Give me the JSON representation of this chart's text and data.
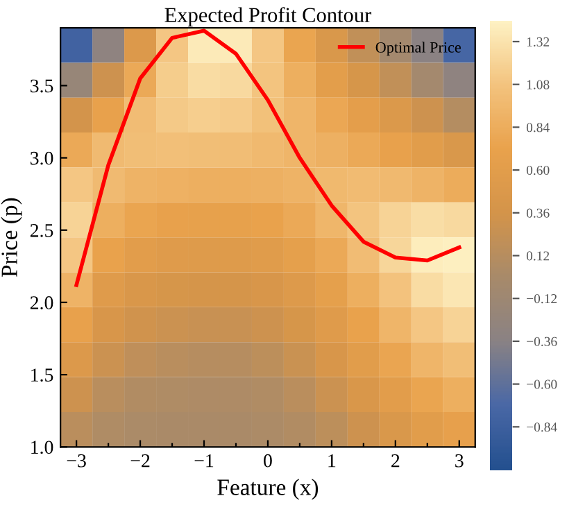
{
  "chart_data": {
    "type": "heatmap",
    "title": "Expected Profit Contour",
    "xlabel": "Feature (x)",
    "ylabel": "Price (p)",
    "categories": [
      "−3",
      null,
      "−2",
      null,
      "−1",
      null,
      "0",
      null,
      "1",
      null,
      "2",
      null,
      "3"
    ],
    "cells": [
      [
        -0.8,
        -0.3,
        0.5,
        1.1,
        1.38,
        1.38,
        1.1,
        0.75,
        0.45,
        0.2,
        -0.05,
        -0.35,
        -0.75
      ],
      [
        -0.2,
        0.3,
        0.8,
        1.15,
        1.27,
        1.25,
        1.08,
        0.85,
        0.62,
        0.4,
        0.2,
        -0.05,
        -0.3
      ],
      [
        0.35,
        0.7,
        1.0,
        1.12,
        1.16,
        1.14,
        1.05,
        0.92,
        0.78,
        0.63,
        0.48,
        0.3,
        0.1
      ],
      [
        0.8,
        0.98,
        1.02,
        1.03,
        1.02,
        1.01,
        0.97,
        0.92,
        0.87,
        0.8,
        0.7,
        0.58,
        0.45
      ],
      [
        1.1,
        0.98,
        0.9,
        0.88,
        0.86,
        0.86,
        0.87,
        0.9,
        0.96,
        0.99,
        0.97,
        0.9,
        0.82
      ],
      [
        1.2,
        0.85,
        0.75,
        0.7,
        0.69,
        0.69,
        0.72,
        0.8,
        0.93,
        1.08,
        1.2,
        1.28,
        1.25
      ],
      [
        1.1,
        0.72,
        0.6,
        0.55,
        0.53,
        0.53,
        0.57,
        0.66,
        0.8,
        1.0,
        1.22,
        1.4,
        1.42
      ],
      [
        0.9,
        0.55,
        0.44,
        0.4,
        0.38,
        0.38,
        0.42,
        0.52,
        0.66,
        0.85,
        1.07,
        1.27,
        1.35
      ],
      [
        0.7,
        0.42,
        0.32,
        0.28,
        0.26,
        0.26,
        0.3,
        0.4,
        0.55,
        0.72,
        0.92,
        1.1,
        1.2
      ],
      [
        0.5,
        0.28,
        0.18,
        0.14,
        0.12,
        0.12,
        0.17,
        0.27,
        0.42,
        0.58,
        0.76,
        0.92,
        1.02
      ],
      [
        0.3,
        0.14,
        0.08,
        0.06,
        0.05,
        0.05,
        0.07,
        0.15,
        0.28,
        0.44,
        0.6,
        0.75,
        0.85
      ],
      [
        0.15,
        0.06,
        0.03,
        0.02,
        0.02,
        0.02,
        0.04,
        0.08,
        0.17,
        0.3,
        0.45,
        0.58,
        0.68
      ]
    ],
    "clim": [
      -1.08,
      1.44
    ],
    "cticks": [
      {
        "value": -0.84,
        "label": "−0.84"
      },
      {
        "value": -0.6,
        "label": "−0.60"
      },
      {
        "value": -0.36,
        "label": "−0.36"
      },
      {
        "value": -0.12,
        "label": "−0.12"
      },
      {
        "value": 0.12,
        "label": "0.12"
      },
      {
        "value": 0.36,
        "label": "0.36"
      },
      {
        "value": 0.6,
        "label": "0.60"
      },
      {
        "value": 0.84,
        "label": "0.84"
      },
      {
        "value": 1.08,
        "label": "1.08"
      },
      {
        "value": 1.32,
        "label": "1.32"
      }
    ],
    "ylim": [
      1.0,
      3.9
    ],
    "yticks": [
      {
        "value": 1.0,
        "label": "1.0"
      },
      1.5,
      {
        "value": 2.0,
        "label": "2.0"
      },
      2.5,
      {
        "value": 3.0,
        "label": "3.0"
      },
      3.5
    ],
    "series": [
      {
        "name": "Optimal Price",
        "type": "line",
        "color": "#ff0000",
        "values": [
          2.12,
          2.95,
          3.55,
          3.83,
          3.88,
          3.72,
          3.4,
          3.0,
          2.67,
          2.42,
          2.31,
          2.29,
          2.38
        ]
      }
    ],
    "legend": "top right",
    "grid": false
  }
}
